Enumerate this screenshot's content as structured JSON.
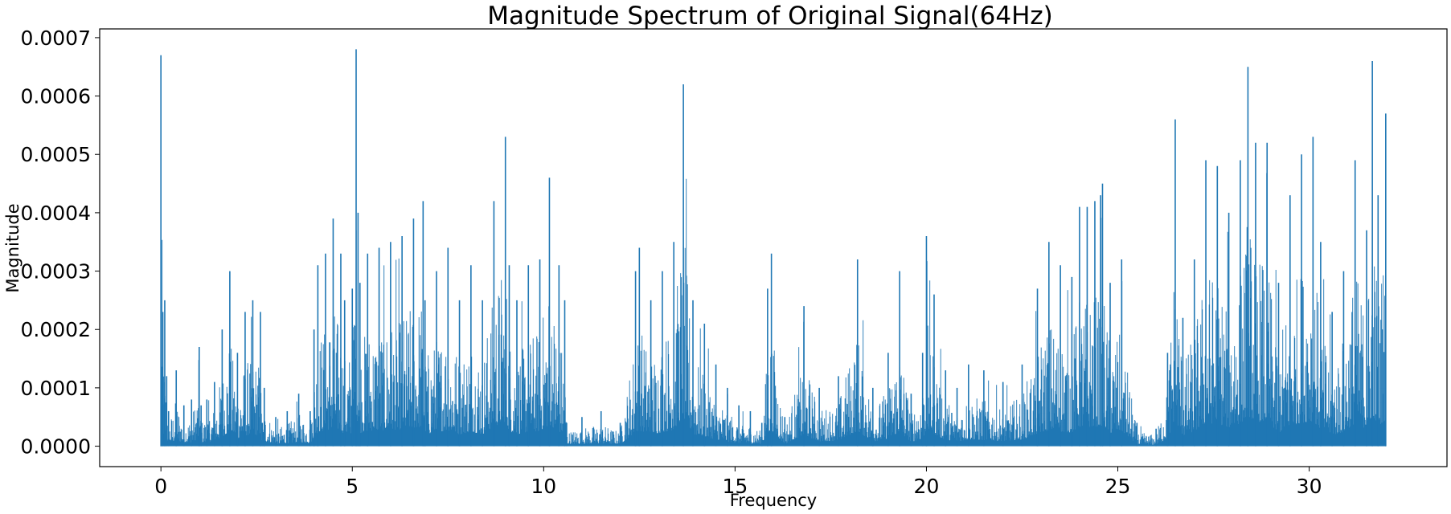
{
  "chart_data": {
    "type": "line",
    "title": "Magnitude Spectrum of Original Signal(64Hz)",
    "xlabel": "Frequency",
    "ylabel": "Magnitude",
    "xlim": [
      -1.6,
      33.6
    ],
    "ylim": [
      -3.5e-05,
      0.000715
    ],
    "xticks": [
      0,
      5,
      10,
      15,
      20,
      25,
      30
    ],
    "xtick_labels": [
      "0",
      "5",
      "10",
      "15",
      "20",
      "25",
      "30"
    ],
    "yticks": [
      0.0,
      0.0001,
      0.0002,
      0.0003,
      0.0004,
      0.0005,
      0.0006,
      0.0007
    ],
    "ytick_labels": [
      "0.0000",
      "0.0001",
      "0.0002",
      "0.0003",
      "0.0004",
      "0.0005",
      "0.0006",
      "0.0007"
    ],
    "grid": false,
    "line_color": "#1f77b4",
    "series": [
      {
        "x": [
          0.0,
          0.05,
          0.1,
          0.15,
          0.2,
          0.4,
          0.6,
          0.8,
          1.0,
          1.05,
          1.2,
          1.4,
          1.6,
          1.8,
          2.0,
          2.2,
          2.4,
          2.6,
          2.65,
          2.7,
          3.0,
          3.3,
          3.6,
          3.9,
          4.0,
          4.1,
          4.3,
          4.5,
          4.7,
          4.8,
          5.0,
          5.1,
          5.15,
          5.2,
          5.4,
          5.7,
          6.0,
          6.3,
          6.6,
          6.85,
          6.9,
          7.2,
          7.5,
          7.8,
          8.1,
          8.4,
          8.7,
          9.0,
          9.1,
          9.3,
          9.6,
          9.9,
          10.15,
          10.4,
          10.55,
          10.6,
          11.0,
          11.5,
          12.0,
          12.4,
          12.5,
          12.8,
          13.1,
          13.4,
          13.65,
          13.9,
          14.2,
          14.5,
          14.8,
          15.1,
          15.4,
          15.7,
          15.85,
          15.95,
          16.3,
          16.8,
          17.2,
          17.7,
          18.2,
          18.6,
          19.0,
          19.3,
          19.6,
          19.9,
          20.0,
          20.2,
          20.5,
          20.8,
          21.1,
          21.5,
          22.0,
          22.5,
          22.9,
          23.2,
          23.5,
          23.8,
          24.0,
          24.2,
          24.4,
          24.55,
          24.6,
          24.8,
          25.1,
          25.5,
          26.0,
          26.3,
          26.5,
          26.7,
          27.0,
          27.3,
          27.6,
          27.9,
          28.2,
          28.4,
          28.6,
          28.9,
          29.2,
          29.5,
          29.8,
          30.1,
          30.3,
          30.6,
          30.9,
          31.2,
          31.5,
          31.65,
          31.8,
          32.0
        ],
        "y": [
          0.00067,
          0.00023,
          0.00025,
          0.00012,
          6e-05,
          0.00013,
          7e-05,
          8e-05,
          0.00017,
          7e-05,
          8e-05,
          0.00011,
          0.0002,
          0.0003,
          0.00016,
          0.00023,
          0.00025,
          0.00023,
          4e-05,
          0.0001,
          5e-05,
          6e-05,
          9e-05,
          6e-05,
          0.0002,
          0.00031,
          0.00033,
          0.00039,
          0.00033,
          0.00025,
          0.00027,
          0.00068,
          0.0004,
          0.00028,
          0.00033,
          0.00034,
          0.00035,
          0.00036,
          0.00039,
          0.00042,
          0.00025,
          0.0003,
          0.00034,
          0.00025,
          0.00031,
          0.00025,
          0.00042,
          0.00053,
          0.00031,
          0.00025,
          0.00031,
          0.00032,
          0.00046,
          0.00031,
          0.00025,
          4e-05,
          5e-05,
          6e-05,
          4e-05,
          0.0003,
          0.00034,
          0.00025,
          0.0003,
          0.00035,
          0.00062,
          0.00025,
          0.00021,
          0.00014,
          0.0001,
          7e-05,
          6e-05,
          4e-05,
          0.00027,
          0.00033,
          5e-05,
          0.00024,
          0.0001,
          0.00012,
          0.00032,
          0.0001,
          0.00016,
          0.0003,
          9e-05,
          0.00016,
          0.00036,
          0.00026,
          0.00013,
          0.0001,
          0.00014,
          0.00013,
          0.00011,
          0.00014,
          0.00027,
          0.00035,
          0.00031,
          0.00029,
          0.00041,
          0.00041,
          0.00042,
          0.00043,
          0.00045,
          0.00028,
          0.00032,
          4e-05,
          3e-05,
          0.00016,
          0.00056,
          0.00022,
          0.00032,
          0.00049,
          0.00048,
          0.0004,
          0.00049,
          0.00065,
          0.00052,
          0.00052,
          0.00028,
          0.00043,
          0.0005,
          0.00053,
          0.00035,
          0.00023,
          0.0003,
          0.00049,
          0.00037,
          0.00066,
          0.00043,
          0.00057
        ]
      }
    ]
  }
}
